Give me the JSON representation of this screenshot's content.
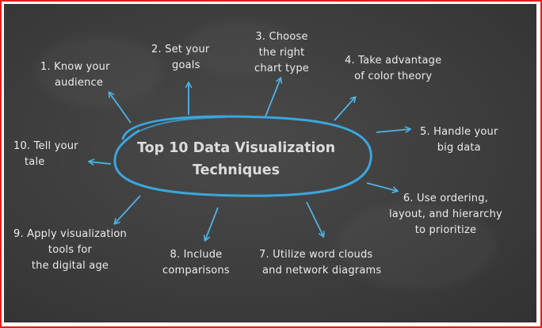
{
  "center": {
    "line1": "Top 10 Data Visualization",
    "line2": "Techniques"
  },
  "nodes": [
    {
      "id": "1",
      "lines": [
        "1. Know your",
        "audience"
      ]
    },
    {
      "id": "2",
      "lines": [
        "2. Set your",
        "goals"
      ]
    },
    {
      "id": "3",
      "lines": [
        "3. Choose",
        "the right",
        "chart type"
      ]
    },
    {
      "id": "4",
      "lines": [
        "4. Take advantage",
        "of color theory"
      ]
    },
    {
      "id": "5",
      "lines": [
        "5. Handle your",
        "big data"
      ]
    },
    {
      "id": "6",
      "lines": [
        "6. Use ordering,",
        "layout, and hierarchy",
        "to prioritize"
      ]
    },
    {
      "id": "7",
      "lines": [
        "7. Utilize word clouds",
        "and network diagrams"
      ]
    },
    {
      "id": "8",
      "lines": [
        "8. Include",
        "comparisons"
      ]
    },
    {
      "id": "9",
      "lines": [
        "9. Apply visualization",
        "tools for",
        "the digital age"
      ]
    },
    {
      "id": "10",
      "lines": [
        "10. Tell your",
        "tale"
      ]
    }
  ],
  "colors": {
    "chalk": "#ececec",
    "oval": "#3aa6dc",
    "arrow": "#4fb3e6",
    "board": "#3d3d3d",
    "frame": "#e02020"
  }
}
